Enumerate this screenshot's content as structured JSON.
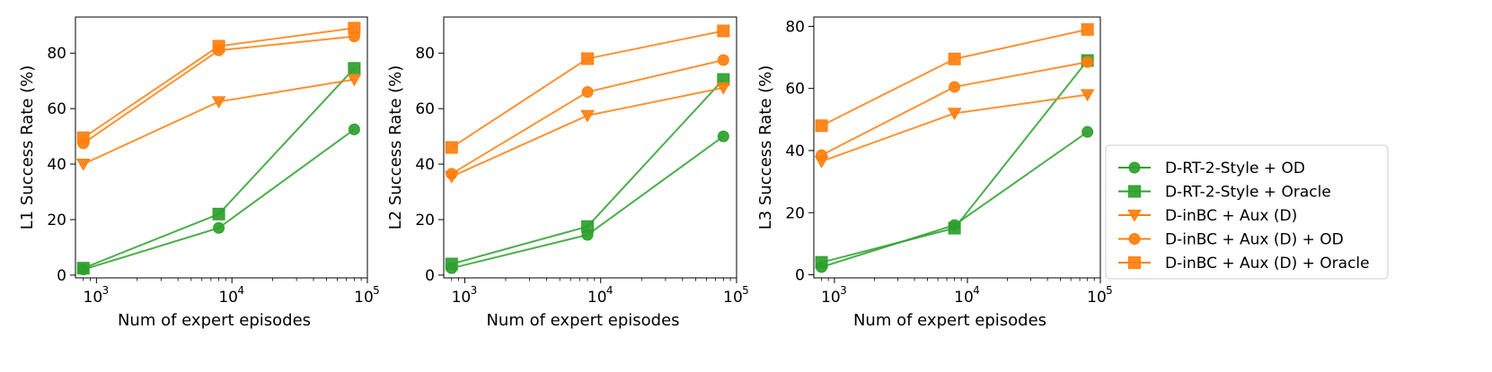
{
  "chart_data": [
    {
      "type": "line",
      "xscale": "log",
      "xlim": [
        700,
        100000
      ],
      "ylim": [
        -1,
        93
      ],
      "yticks": [
        0,
        20,
        40,
        60,
        80
      ],
      "xticks": [
        1000,
        10000,
        100000
      ],
      "xtick_labels": [
        "10",
        "10",
        "10"
      ],
      "xtick_exponents": [
        "3",
        "4",
        "5"
      ],
      "xlabel": "Num of expert episodes",
      "ylabel": "L1 Success Rate (%)",
      "x": [
        800,
        8000,
        80000
      ],
      "series": [
        {
          "name": "D-RT-2-Style + OD",
          "values": [
            2,
            17,
            52.5
          ]
        },
        {
          "name": "D-RT-2-Style + Oracle",
          "values": [
            2.5,
            22,
            74.5
          ]
        },
        {
          "name": "D-inBC + Aux (D)",
          "values": [
            40,
            62.5,
            70.5
          ]
        },
        {
          "name": "D-inBC + Aux (D) + OD",
          "values": [
            47.5,
            81,
            86
          ]
        },
        {
          "name": "D-inBC + Aux (D) + Oracle",
          "values": [
            49.5,
            82.5,
            89
          ]
        }
      ]
    },
    {
      "type": "line",
      "xscale": "log",
      "xlim": [
        700,
        100000
      ],
      "ylim": [
        -1,
        93
      ],
      "yticks": [
        0,
        20,
        40,
        60,
        80
      ],
      "xticks": [
        1000,
        10000,
        100000
      ],
      "xtick_labels": [
        "10",
        "10",
        "10"
      ],
      "xtick_exponents": [
        "3",
        "4",
        "5"
      ],
      "xlabel": "Num of expert episodes",
      "ylabel": "L2 Success Rate (%)",
      "x": [
        800,
        8000,
        80000
      ],
      "series": [
        {
          "name": "D-RT-2-Style + OD",
          "values": [
            2.5,
            14.5,
            50
          ]
        },
        {
          "name": "D-RT-2-Style + Oracle",
          "values": [
            4,
            17.5,
            70.5
          ]
        },
        {
          "name": "D-inBC + Aux (D)",
          "values": [
            35.5,
            57.5,
            67.5
          ]
        },
        {
          "name": "D-inBC + Aux (D) + OD",
          "values": [
            36.5,
            66,
            77.5
          ]
        },
        {
          "name": "D-inBC + Aux (D) + Oracle",
          "values": [
            46,
            78,
            88
          ]
        }
      ]
    },
    {
      "type": "line",
      "xscale": "log",
      "xlim": [
        700,
        100000
      ],
      "ylim": [
        -1,
        83
      ],
      "yticks": [
        0,
        20,
        40,
        60,
        80
      ],
      "xticks": [
        1000,
        10000,
        100000
      ],
      "xtick_labels": [
        "10",
        "10",
        "10"
      ],
      "xtick_exponents": [
        "3",
        "4",
        "5"
      ],
      "xlabel": "Num of expert episodes",
      "ylabel": "L3 Success Rate (%)",
      "x": [
        800,
        8000,
        80000
      ],
      "series": [
        {
          "name": "D-RT-2-Style + OD",
          "values": [
            2.5,
            16,
            46
          ]
        },
        {
          "name": "D-RT-2-Style + Oracle",
          "values": [
            4,
            15,
            69
          ]
        },
        {
          "name": "D-inBC + Aux (D)",
          "values": [
            36.5,
            52,
            58
          ]
        },
        {
          "name": "D-inBC + Aux (D) + OD",
          "values": [
            38.5,
            60.5,
            68.5
          ]
        },
        {
          "name": "D-inBC + Aux (D) + Oracle",
          "values": [
            48,
            69.5,
            79
          ]
        }
      ]
    }
  ],
  "legend": {
    "placement": "right",
    "entries": [
      {
        "label": "D-RT-2-Style + OD",
        "color": "#2ca02c",
        "marker": "circle"
      },
      {
        "label": "D-RT-2-Style + Oracle",
        "color": "#2ca02c",
        "marker": "square"
      },
      {
        "label": "D-inBC + Aux (D)",
        "color": "#ff7f0e",
        "marker": "triangle-down"
      },
      {
        "label": "D-inBC + Aux (D) + OD",
        "color": "#ff7f0e",
        "marker": "circle"
      },
      {
        "label": "D-inBC + Aux (D) + Oracle",
        "color": "#ff7f0e",
        "marker": "square"
      }
    ]
  },
  "colors": {
    "green": "#2ca02c",
    "orange": "#ff7f0e"
  }
}
